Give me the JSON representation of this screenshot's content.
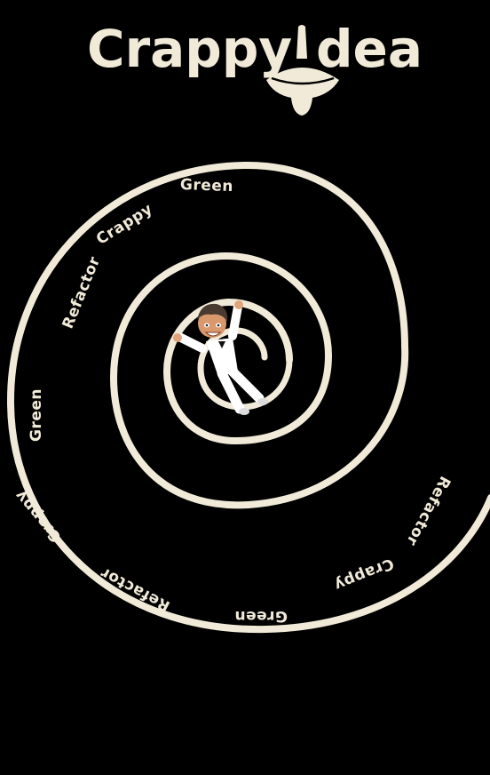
{
  "logo": {
    "word1": "Crappy",
    "word2": "dea",
    "icon": "spinning-top-icon"
  },
  "colors": {
    "background": "#000000",
    "foreground": "#f1ead8"
  },
  "spiral_labels": [
    "Green",
    "Crappy",
    "Refactor",
    "Green",
    "Crappy",
    "Refactor",
    "Green",
    "Crappy",
    "Refactor"
  ],
  "center": {
    "avatar": "avatar-in-white-suit"
  }
}
